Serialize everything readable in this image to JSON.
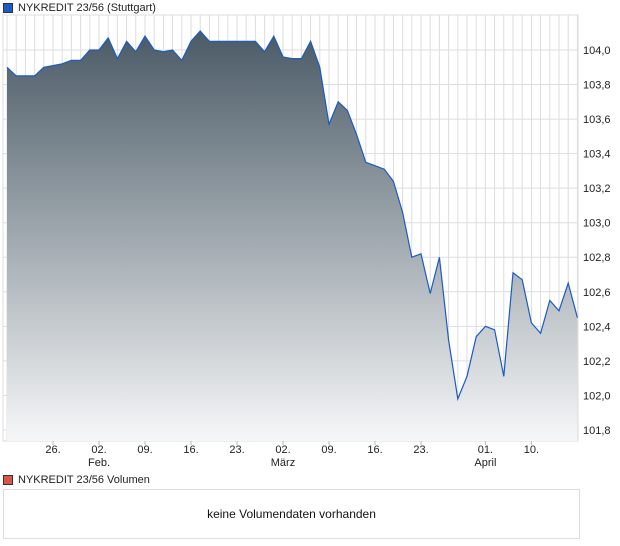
{
  "chart_data": {
    "type": "area",
    "legend": "NYKREDIT 23/56 (Stuttgart)",
    "series": [
      {
        "name": "NYKREDIT 23/56 (Stuttgart)",
        "color": "#1a5bc4",
        "values": [
          103.9,
          103.85,
          103.85,
          103.85,
          103.9,
          103.91,
          103.92,
          103.94,
          103.94,
          104.0,
          104.0,
          104.07,
          103.95,
          104.05,
          103.99,
          104.08,
          104.0,
          103.99,
          104.0,
          103.94,
          104.05,
          104.11,
          104.05,
          104.05,
          104.05,
          104.05,
          104.05,
          104.05,
          103.99,
          104.08,
          103.96,
          103.95,
          103.95,
          104.05,
          103.9,
          103.57,
          103.7,
          103.65,
          103.51,
          103.35,
          103.33,
          103.31,
          103.24,
          103.06,
          102.8,
          102.82,
          102.59,
          102.8,
          102.32,
          101.98,
          102.11,
          102.34,
          102.4,
          102.38,
          102.11,
          102.71,
          102.67,
          102.42,
          102.36,
          102.55,
          102.49,
          102.65,
          102.45
        ]
      }
    ],
    "x_ticks": [
      {
        "index": 5,
        "label": "26.",
        "sub": ""
      },
      {
        "index": 10,
        "label": "02.",
        "sub": "Feb."
      },
      {
        "index": 15,
        "label": "09.",
        "sub": ""
      },
      {
        "index": 20,
        "label": "16.",
        "sub": ""
      },
      {
        "index": 25,
        "label": "23.",
        "sub": ""
      },
      {
        "index": 30,
        "label": "02.",
        "sub": "März"
      },
      {
        "index": 35,
        "label": "09.",
        "sub": ""
      },
      {
        "index": 40,
        "label": "16.",
        "sub": ""
      },
      {
        "index": 45,
        "label": "23.",
        "sub": ""
      },
      {
        "index": 52,
        "label": "01.",
        "sub": "April"
      },
      {
        "index": 57,
        "label": "10.",
        "sub": ""
      }
    ],
    "y_ticks": [
      "101,8",
      "102,0",
      "102,2",
      "102,4",
      "102,6",
      "102,8",
      "103,0",
      "103,2",
      "103,4",
      "103,6",
      "103,8",
      "104,0"
    ],
    "ylim": [
      101.73,
      104.21
    ],
    "grid": true,
    "fill_top": "#4a5a66",
    "fill_bottom": "#f6f7f8"
  },
  "volume": {
    "legend": "NYKREDIT 23/56 Volumen",
    "legend_color": "#d9534f",
    "message": "keine Volumendaten vorhanden"
  }
}
